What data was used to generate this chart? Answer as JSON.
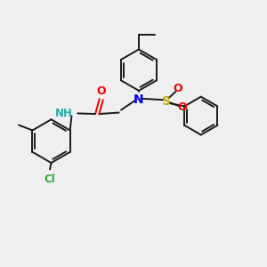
{
  "bg_color": "#efefef",
  "bond_color": "#1a1a1a",
  "bond_width": 1.4,
  "N_color": "#0000ee",
  "S_color": "#bbaa00",
  "O_color": "#ee0000",
  "Cl_color": "#33aa33",
  "H_color": "#22aaaa",
  "font_size": 8.5,
  "fig_width": 3.0,
  "fig_height": 3.0,
  "dpi": 100,
  "xlim": [
    0,
    10
  ],
  "ylim": [
    0,
    10
  ]
}
